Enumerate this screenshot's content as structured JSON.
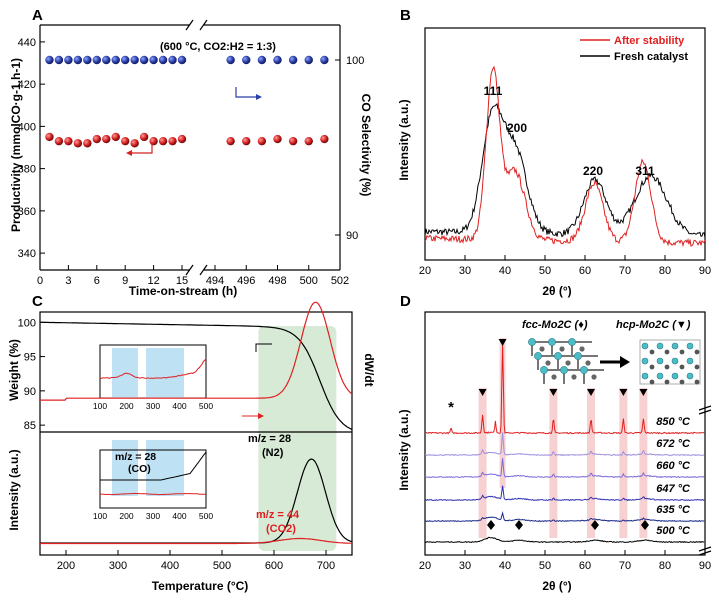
{
  "chart_data": [
    {
      "panel": "A",
      "type": "scatter",
      "annotation": "(600 °C, CO2:H2 = 1:3)",
      "xlabel": "Time-on-stream (h)",
      "ylabel_left": "Productivity (mmolCO·g-1.h-1)",
      "ylabel_right": "CO Selectivity (%)",
      "x_ticks": [
        "0",
        "3",
        "6",
        "9",
        "12",
        "15",
        "494",
        "496",
        "498",
        "500",
        "502"
      ],
      "y_ticks_left": [
        "340",
        "360",
        "380",
        "400",
        "420",
        "440"
      ],
      "y_ticks_right": [
        "90",
        "100"
      ],
      "ylim_left": [
        332,
        448
      ],
      "ylim_right": [
        88,
        102
      ],
      "series": [
        {
          "name": "CO Selectivity",
          "axis": "right",
          "color": "#2b3fa8",
          "x_left": [
            1,
            2,
            3,
            4,
            5,
            6,
            7,
            8,
            9,
            10,
            11,
            12,
            13,
            14,
            15
          ],
          "x_right": [
            495,
            496,
            497,
            498,
            499,
            500,
            501
          ],
          "y": 100
        },
        {
          "name": "Productivity",
          "axis": "left",
          "color": "#d42020",
          "x_left": [
            1,
            2,
            3,
            4,
            5,
            6,
            7,
            8,
            9,
            10,
            11,
            12,
            13,
            14,
            15
          ],
          "y_left": [
            395,
            393,
            393,
            392,
            392,
            394,
            394,
            395,
            393,
            392,
            395,
            393,
            393,
            393,
            394
          ],
          "x_right": [
            495,
            496,
            497,
            498,
            499,
            500,
            501
          ],
          "y_right": [
            393,
            393,
            393,
            394,
            393,
            393,
            394
          ]
        }
      ]
    },
    {
      "panel": "B",
      "type": "line",
      "xlabel": "2θ (°)",
      "ylabel": "Intensity (a.u.)",
      "x_ticks": [
        "20",
        "30",
        "40",
        "50",
        "60",
        "70",
        "80",
        "90"
      ],
      "xlim": [
        20,
        90
      ],
      "legend": [
        "After stability",
        "Fresh catalyst"
      ],
      "peak_labels": [
        "111",
        "200",
        "220",
        "311"
      ],
      "peak_positions": [
        37,
        43,
        62,
        75
      ],
      "series": [
        {
          "name": "After stability",
          "color": "#e02020",
          "peaks": [
            [
              37.0,
              1.0,
              1.7
            ],
            [
              43.0,
              0.33,
              2.4
            ],
            [
              62.3,
              0.34,
              2.2
            ],
            [
              74.5,
              0.47,
              2.0
            ],
            [
              41.5,
              0.1,
              1.6
            ]
          ],
          "baseline": 0.08
        },
        {
          "name": "Fresh catalyst",
          "color": "#000000",
          "peaks": [
            [
              36.8,
              0.65,
              2.6
            ],
            [
              42.5,
              0.48,
              3.0
            ],
            [
              62.5,
              0.32,
              2.8
            ],
            [
              76.5,
              0.35,
              4.0
            ]
          ],
          "baseline": 0.12
        }
      ]
    },
    {
      "panel": "C",
      "type": "line",
      "xlabel": "Temperature (°C)",
      "ylabel_top": "Weight (%)",
      "ylabel_bottom": "Intensity (a.u.)",
      "ylabel_right": "dW/dt",
      "x_ticks": [
        "200",
        "300",
        "400",
        "500",
        "600",
        "700"
      ],
      "xlim": [
        150,
        750
      ],
      "y_ticks_top": [
        "85",
        "90",
        "95",
        "100"
      ],
      "inset_x_ticks": [
        "100",
        "200",
        "300",
        "400",
        "500"
      ],
      "labels": {
        "co_line1": "m/z = 28",
        "co_line2": "(CO)",
        "n2_line1": "m/z = 28",
        "n2_line2": "(N2)",
        "co2_line1": "m/z = 44",
        "co2_line2": "(CO2)"
      },
      "highlight_regions": [
        [
          570,
          720
        ]
      ],
      "series": [
        {
          "name": "Weight",
          "color": "#000000"
        },
        {
          "name": "dW/dt",
          "color": "#e02020"
        },
        {
          "name": "m/z = 28 (N2)",
          "color": "#000000"
        },
        {
          "name": "m/z = 44 (CO2)",
          "color": "#e02020"
        }
      ]
    },
    {
      "panel": "D",
      "type": "line",
      "xlabel": "2θ (°)",
      "ylabel": "Intensity (a.u.)",
      "x_ticks": [
        "20",
        "30",
        "40",
        "50",
        "60",
        "70",
        "80",
        "90"
      ],
      "xlim": [
        20,
        90
      ],
      "phase_labels": [
        "fcc-Mo2C (♦)",
        "hcp-Mo2C (▼)"
      ],
      "series_labels": [
        "850 °C",
        "672 °C",
        "660 °C",
        "647 °C",
        "635 °C",
        "500 °C"
      ],
      "colors": [
        "#e02020",
        "#a090e0",
        "#7a6ad8",
        "#3030b0",
        "#1a2a8a",
        "#000000"
      ],
      "hcp_peaks": [
        34.4,
        39.4,
        52.1,
        61.5,
        69.6,
        74.6
      ],
      "fcc_peaks": [
        36.5,
        43.5,
        62.5,
        75.0
      ],
      "star_label": "*",
      "star_position": 26.5
    }
  ]
}
